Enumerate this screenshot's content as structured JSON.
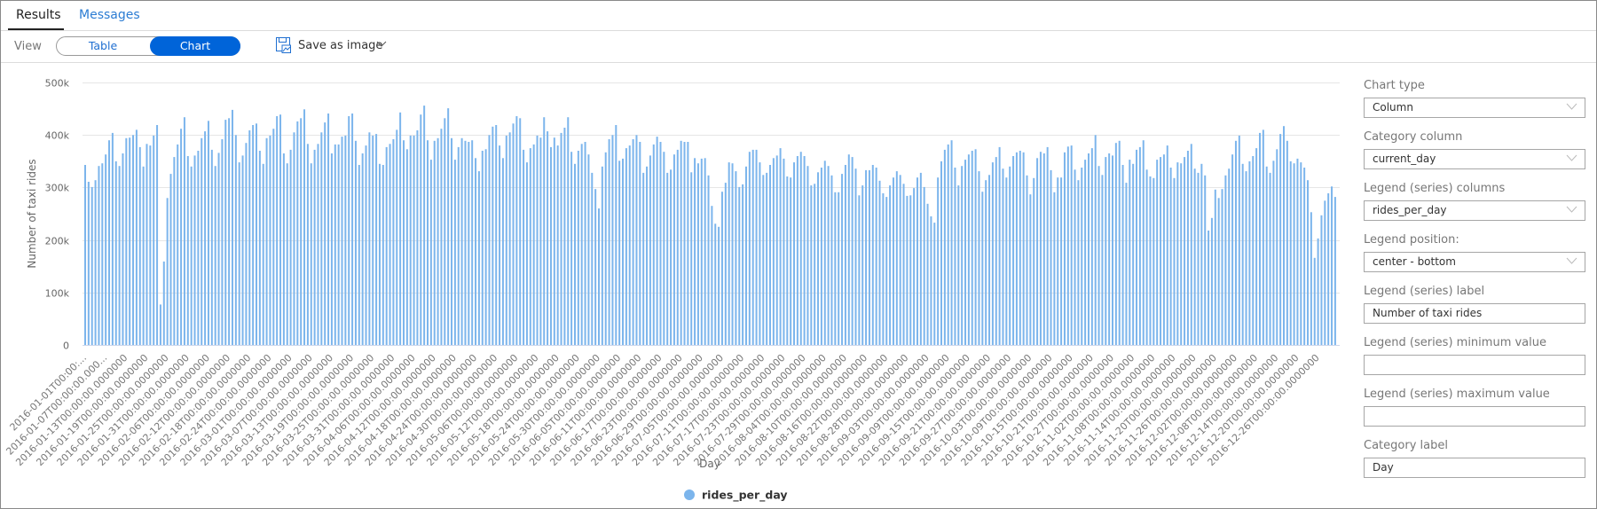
{
  "tabs": {
    "results": "Results",
    "messages": "Messages"
  },
  "toolbar": {
    "view_label": "View",
    "table_label": "Table",
    "chart_label": "Chart",
    "active_view": "Chart",
    "save_as_image": "Save as image"
  },
  "settings": {
    "chart_type": {
      "label": "Chart type",
      "value": "Column"
    },
    "category_column": {
      "label": "Category column",
      "value": "current_day"
    },
    "legend_columns": {
      "label": "Legend (series) columns",
      "value": "rides_per_day"
    },
    "legend_position": {
      "label": "Legend position:",
      "value": "center - bottom"
    },
    "legend_label": {
      "label": "Legend (series) label",
      "value": "Number of taxi rides"
    },
    "legend_min": {
      "label": "Legend (series) minimum value",
      "value": ""
    },
    "legend_max": {
      "label": "Legend (series) maximum value",
      "value": ""
    },
    "category_label": {
      "label": "Category label",
      "value": "Day"
    }
  },
  "colors": {
    "accent": "#0064d9",
    "bar": "#7cb5ec",
    "link": "#2b7cd3"
  },
  "chart_data": {
    "type": "bar",
    "xlabel": "Day",
    "ylabel": "Number of taxi rides",
    "ylim": [
      0,
      500000
    ],
    "y_ticks": [
      "0",
      "100k",
      "200k",
      "300k",
      "400k",
      "500k"
    ],
    "grid": true,
    "legend_position": "bottom-center",
    "series": [
      {
        "name": "rides_per_day",
        "values": [
          343000,
          311000,
          301000,
          314000,
          341000,
          346000,
          363000,
          390000,
          404000,
          350000,
          341000,
          365000,
          394000,
          395000,
          400000,
          410000,
          377000,
          340000,
          383000,
          380000,
          399000,
          419000,
          77000,
          159000,
          280000,
          326000,
          358000,
          382000,
          412000,
          434000,
          360000,
          340000,
          361000,
          370000,
          394000,
          407000,
          427000,
          372000,
          341000,
          366000,
          392000,
          429000,
          432000,
          448000,
          400000,
          348000,
          361000,
          385000,
          409000,
          419000,
          422000,
          370000,
          345000,
          394000,
          399000,
          412000,
          436000,
          439000,
          365000,
          346000,
          372000,
          405000,
          426000,
          432000,
          449000,
          383000,
          346000,
          372000,
          383000,
          405000,
          424000,
          441000,
          365000,
          382000,
          382000,
          397000,
          399000,
          436000,
          441000,
          389000,
          343000,
          365000,
          380000,
          405000,
          399000,
          402000,
          345000,
          343000,
          377000,
          383000,
          392000,
          410000,
          443000,
          390000,
          373000,
          399000,
          399000,
          409000,
          439000,
          456000,
          390000,
          353000,
          389000,
          394000,
          412000,
          432000,
          451000,
          394000,
          353000,
          377000,
          394000,
          389000,
          387000,
          390000,
          356000,
          331000,
          370000,
          373000,
          400000,
          416000,
          419000,
          380000,
          356000,
          399000,
          405000,
          422000,
          436000,
          432000,
          372000,
          348000,
          375000,
          382000,
          399000,
          395000,
          434000,
          407000,
          377000,
          395000,
          380000,
          404000,
          414000,
          434000,
          368000,
          345000,
          370000,
          383000,
          387000,
          363000,
          328000,
          297000,
          260000,
          340000,
          367000,
          392000,
          400000,
          419000,
          351000,
          355000,
          375000,
          380000,
          392000,
          400000,
          387000,
          328000,
          340000,
          361000,
          382000,
          397000,
          387000,
          368000,
          328000,
          334000,
          363000,
          372000,
          389000,
          387000,
          387000,
          329000,
          356000,
          346000,
          355000,
          356000,
          323000,
          265000,
          231000,
          225000,
          292000,
          309000,
          348000,
          346000,
          331000,
          301000,
          306000,
          340000,
          368000,
          372000,
          372000,
          348000,
          324000,
          328000,
          343000,
          356000,
          361000,
          375000,
          355000,
          321000,
          319000,
          348000,
          360000,
          368000,
          360000,
          341000,
          304000,
          307000,
          329000,
          338000,
          351000,
          341000,
          323000,
          291000,
          291000,
          326000,
          343000,
          363000,
          358000,
          336000,
          285000,
          304000,
          333000,
          333000,
          343000,
          338000,
          313000,
          289000,
          282000,
          304000,
          319000,
          331000,
          324000,
          307000,
          284000,
          285000,
          299000,
          319000,
          328000,
          301000,
          269000,
          245000,
          233000,
          319000,
          350000,
          372000,
          382000,
          390000,
          338000,
          304000,
          341000,
          353000,
          363000,
          370000,
          373000,
          331000,
          292000,
          314000,
          324000,
          348000,
          358000,
          377000,
          336000,
          319000,
          340000,
          360000,
          367000,
          370000,
          367000,
          323000,
          287000,
          318000,
          356000,
          368000,
          365000,
          377000,
          333000,
          291000,
          319000,
          319000,
          367000,
          378000,
          380000,
          334000,
          314000,
          338000,
          353000,
          365000,
          375000,
          400000,
          341000,
          324000,
          358000,
          365000,
          361000,
          385000,
          389000,
          343000,
          309000,
          353000,
          345000,
          372000,
          377000,
          390000,
          334000,
          321000,
          318000,
          353000,
          358000,
          363000,
          380000,
          338000,
          318000,
          348000,
          346000,
          358000,
          370000,
          383000,
          336000,
          328000,
          345000,
          323000,
          218000,
          242000,
          296000,
          280000,
          297000,
          323000,
          336000,
          363000,
          389000,
          399000,
          345000,
          331000,
          350000,
          360000,
          375000,
          404000,
          410000,
          340000,
          328000,
          351000,
          373000,
          402000,
          417000,
          389000,
          350000,
          346000,
          355000,
          348000,
          338000,
          314000,
          253000,
          166000,
          203000,
          247000,
          275000,
          289000,
          302000,
          282000
        ]
      }
    ],
    "tick_labels": [
      "2016-01-01T00:00:...",
      "2016-01-07T00:00:00.000...",
      "2016-01-13T00:00:00.0000000",
      "2016-01-19T00:00:00.0000000",
      "2016-01-25T00:00:00.0000000",
      "2016-01-31T00:00:00.0000000",
      "2016-02-06T00:00:00.0000000",
      "2016-02-12T00:00:00.0000000",
      "2016-02-18T00:00:00.0000000",
      "2016-02-24T00:00:00.0000000",
      "2016-03-01T00:00:00.0000000",
      "2016-03-07T00:00:00.0000000",
      "2016-03-13T00:00:00.0000000",
      "2016-03-19T00:00:00.0000000",
      "2016-03-25T00:00:00.0000000",
      "2016-03-31T00:00:00.0000000",
      "2016-04-06T00:00:00.0000000",
      "2016-04-12T00:00:00.0000000",
      "2016-04-18T00:00:00.0000000",
      "2016-04-24T00:00:00.0000000",
      "2016-04-30T00:00:00.0000000",
      "2016-05-06T00:00:00.0000000",
      "2016-05-12T00:00:00.0000000",
      "2016-05-18T00:00:00.0000000",
      "2016-05-24T00:00:00.0000000",
      "2016-05-30T00:00:00.0000000",
      "2016-06-05T00:00:00.0000000",
      "2016-06-11T00:00:00.0000000",
      "2016-06-17T00:00:00.0000000",
      "2016-06-23T00:00:00.0000000",
      "2016-06-29T00:00:00.0000000",
      "2016-07-05T00:00:00.0000000",
      "2016-07-11T00:00:00.0000000",
      "2016-07-17T00:00:00.0000000",
      "2016-07-23T00:00:00.0000000",
      "2016-07-29T00:00:00.0000000",
      "2016-08-04T00:00:00.0000000",
      "2016-08-10T00:00:00.0000000",
      "2016-08-16T00:00:00.0000000",
      "2016-08-22T00:00:00.0000000",
      "2016-08-28T00:00:00.0000000",
      "2016-09-03T00:00:00.0000000",
      "2016-09-09T00:00:00.0000000",
      "2016-09-15T00:00:00.0000000",
      "2016-09-21T00:00:00.0000000",
      "2016-09-27T00:00:00.0000000",
      "2016-10-03T00:00:00.0000000",
      "2016-10-09T00:00:00.0000000",
      "2016-10-15T00:00:00.0000000",
      "2016-10-21T00:00:00.0000000",
      "2016-10-27T00:00:00.0000000",
      "2016-11-02T00:00:00.0000000",
      "2016-11-08T00:00:00.0000000",
      "2016-11-14T00:00:00.0000000",
      "2016-11-20T00:00:00.0000000",
      "2016-11-26T00:00:00.0000000",
      "2016-12-02T00:00:00.0000000",
      "2016-12-08T00:00:00.0000000",
      "2016-12-14T00:00:00.0000000",
      "2016-12-20T00:00:00.0000000",
      "2016-12-26T00:00:00.0000000"
    ]
  }
}
